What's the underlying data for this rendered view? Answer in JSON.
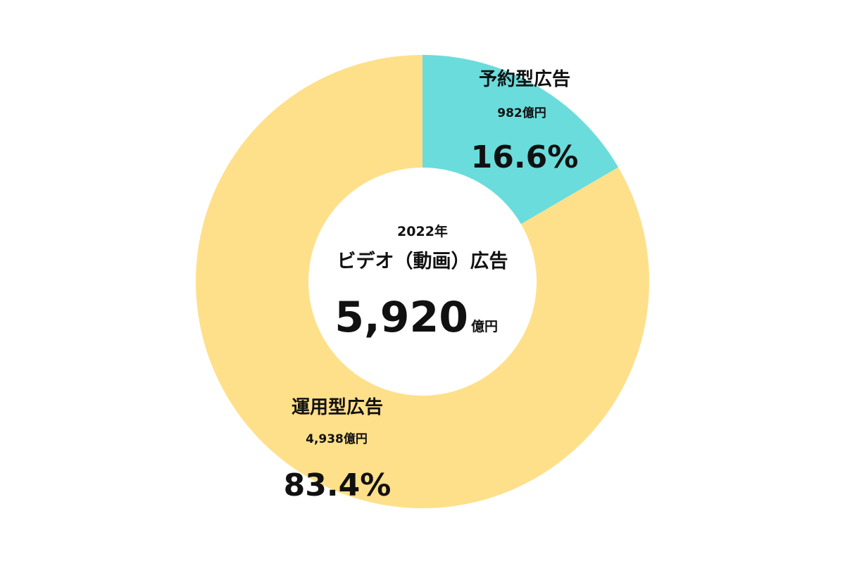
{
  "chart_data": {
    "type": "pie",
    "donut": true,
    "center": {
      "year": "2022年",
      "title": "ビデオ（動画）広告",
      "total_value": "5,920",
      "total_unit": "億円"
    },
    "total": 5920,
    "categories": [
      "予約型広告",
      "運用型広告"
    ],
    "values": [
      982,
      4938
    ],
    "slices": [
      {
        "label": "予約型広告",
        "value": 982,
        "amount_label": "982億円",
        "percent": 16.6,
        "percent_label": "16.6%",
        "color": "#6adcdb"
      },
      {
        "label": "運用型広告",
        "value": 4938,
        "amount_label": "4,938億円",
        "percent": 83.4,
        "percent_label": "83.4%",
        "color": "#ffe08a"
      }
    ],
    "start_angle_deg": 0,
    "direction": "clockwise"
  }
}
